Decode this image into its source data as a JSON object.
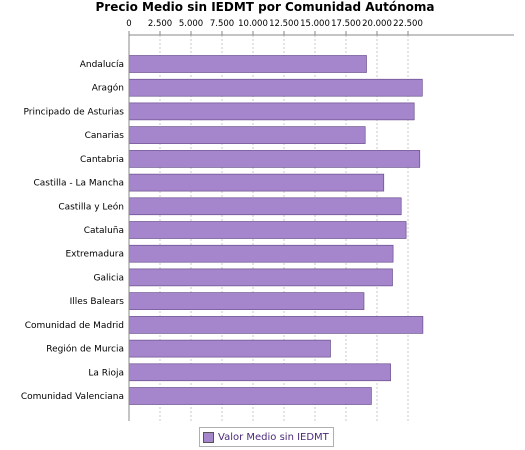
{
  "chart_data": {
    "type": "bar",
    "orientation": "horizontal",
    "title": "Precio Medio sin IEDMT por Comunidad Autónoma",
    "categories": [
      "Andalucía",
      "Aragón",
      "Principado de Asturias",
      "Canarias",
      "Cantabria",
      "Castilla - La Mancha",
      "Castilla y León",
      "Cataluña",
      "Extremadura",
      "Galicia",
      "Illes Balears",
      "Comunidad de Madrid",
      "Región de Murcia",
      "La Rioja",
      "Comunidad Valenciana"
    ],
    "series": [
      {
        "name": "Valor Medio sin IEDMT",
        "values": [
          19150,
          23650,
          23000,
          19050,
          23450,
          20550,
          21950,
          22350,
          21300,
          21250,
          18950,
          23700,
          16250,
          21100,
          19550
        ]
      }
    ],
    "x_ticks": [
      "0",
      "2.500",
      "5.000",
      "7.500",
      "10.000",
      "12.500",
      "15.000",
      "17.500",
      "20.000",
      "22.500"
    ],
    "xlim": [
      0,
      24000
    ],
    "x_axis_position": "top",
    "grid": true,
    "legend_position": "bottom",
    "colors": {
      "bar": "#a585cb",
      "bar_edge": "#5a4080",
      "grid": "#c8c8c8",
      "legend_text": "#4b2a7a"
    }
  }
}
